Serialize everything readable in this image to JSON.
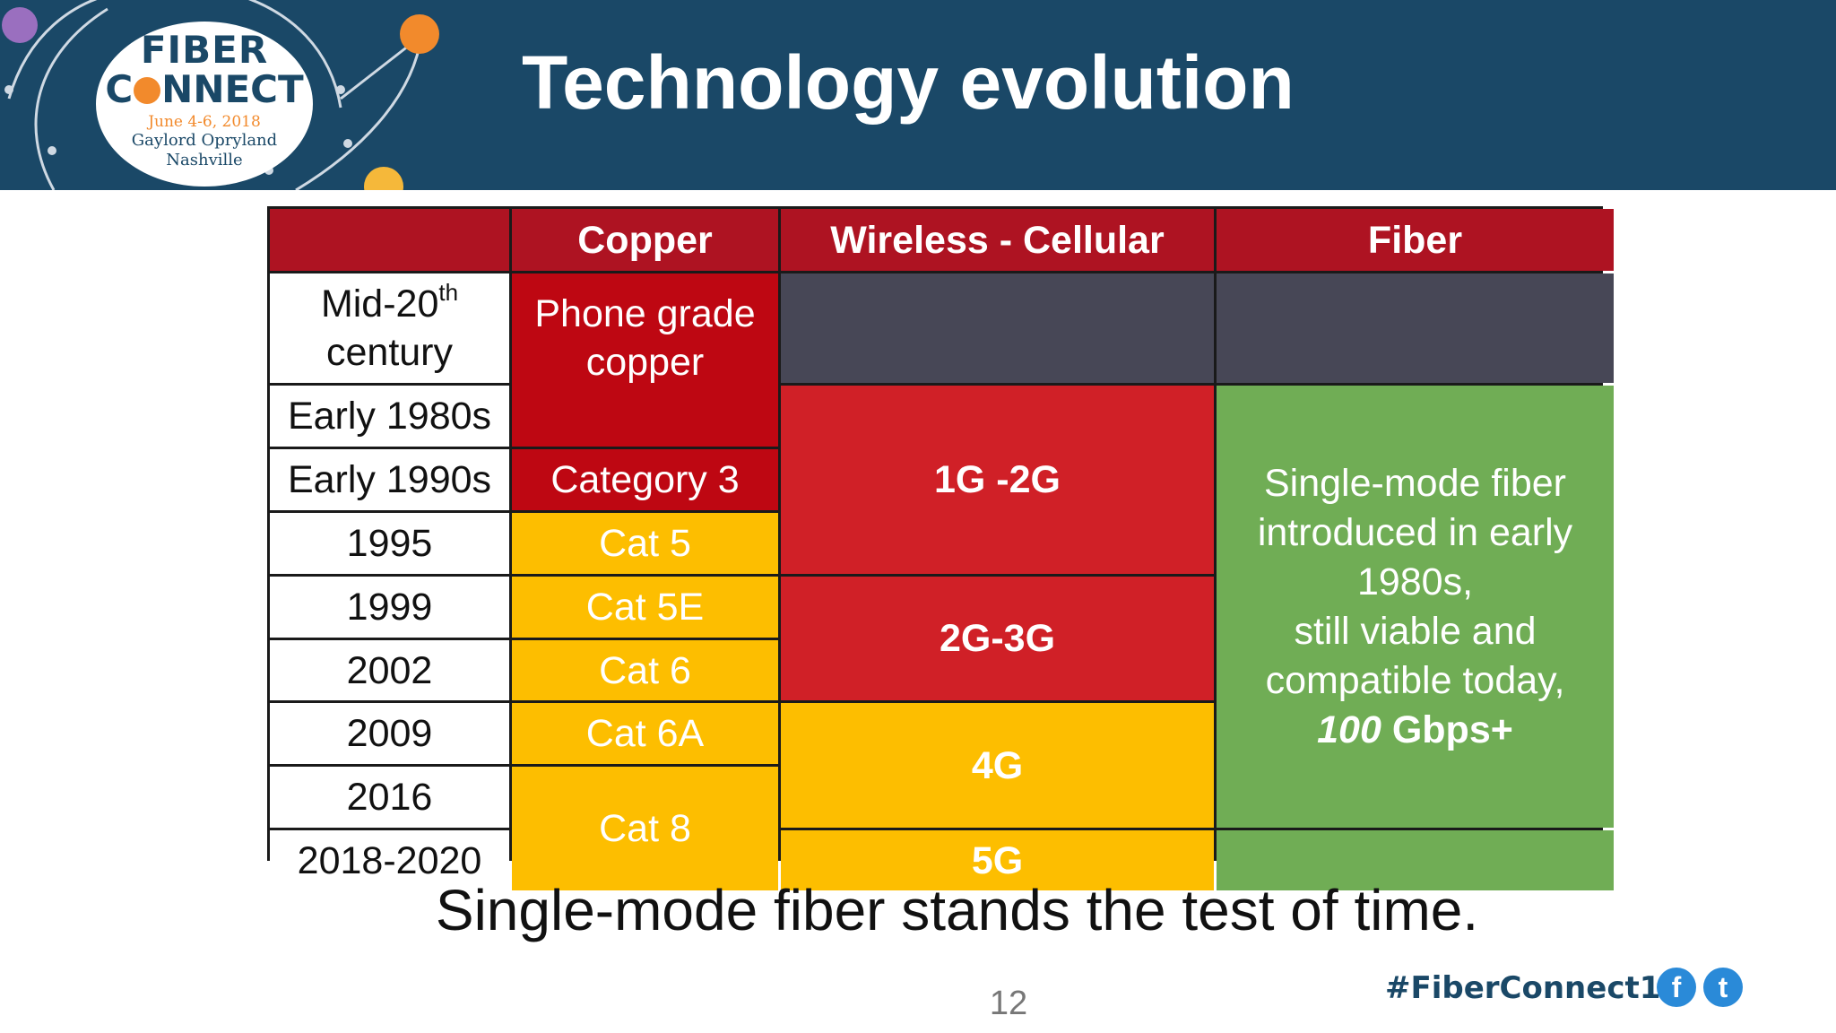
{
  "header": {
    "title": "Technology evolution",
    "logo": {
      "line1": "FIBER",
      "line2_pre": "C",
      "line2_post": "NNECT",
      "dates": "June 4-6, 2018",
      "venue": "Gaylord Opryland",
      "city": "Nashville"
    }
  },
  "table": {
    "headers": [
      "",
      "Copper",
      "Wireless - Cellular",
      "Fiber"
    ],
    "years": {
      "mid20_base": "Mid-20",
      "mid20_sup": "th",
      "mid20_line2": "century",
      "y1980": "Early 1980s",
      "y1990": "Early 1990s",
      "y1995": "1995",
      "y1999": "1999",
      "y2002": "2002",
      "y2009": "2009",
      "y2016": "2016",
      "y2018": "2018-2020"
    },
    "copper": {
      "phone_grade": "Phone grade copper",
      "cat3": "Category 3",
      "cat5": "Cat 5",
      "cat5e": "Cat 5E",
      "cat6": "Cat 6",
      "cat6a": "Cat 6A",
      "cat8": "Cat 8"
    },
    "wireless": {
      "g1_2": "1G -2G",
      "g2_3": "2G-3G",
      "g4": "4G",
      "g5": "5G"
    },
    "fiber": {
      "line1": "Single-mode fiber introduced in early 1980s,",
      "line2": "still viable and compatible today,",
      "speed_italic": "100",
      "speed_rest": " Gbps+"
    }
  },
  "tagline": "Single-mode fiber stands the test of time.",
  "page_number": "12",
  "footer": {
    "hashtag": "#FiberConnect18",
    "facebook_glyph": "f",
    "twitter_glyph": "t"
  },
  "colors": {
    "header_bg": "#1a4867",
    "header_red": "#ae1322",
    "copper_red": "#be0712",
    "wireless_red": "#d02027",
    "amber": "#fdbe00",
    "gray": "#474756",
    "green": "#70ad55",
    "accent_orange": "#f28a2c"
  }
}
